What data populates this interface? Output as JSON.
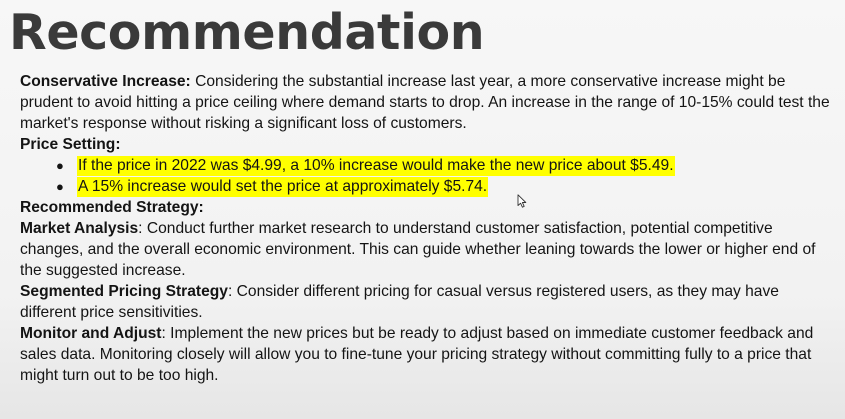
{
  "title": "Recommendation",
  "sections": {
    "conservative": {
      "label": "Conservative Increase:",
      "text": " Considering the substantial increase last year, a more conservative increase might be prudent to avoid hitting a price ceiling where demand starts to drop. An increase in the range of 10-15% could test the market's response without risking a significant loss of customers."
    },
    "price_setting": {
      "label": "Price Setting:",
      "bullets": [
        "If the price in 2022 was $4.99, a 10% increase would make the new price about $5.49.",
        "A 15% increase would set the price at approximately $5.74."
      ]
    },
    "recommended_strategy": {
      "label": "Recommended Strategy:"
    },
    "market_analysis": {
      "label": "Market Analysis",
      "text": ": Conduct further market research to understand customer satisfaction, potential competitive changes, and the overall economic environment. This can guide whether leaning towards the lower or higher end of the suggested increase."
    },
    "segmented_pricing": {
      "label": "Segmented Pricing Strategy",
      "text": ": Consider different pricing for casual versus registered users, as they may have different price sensitivities."
    },
    "monitor_adjust": {
      "label": "Monitor and Adjust",
      "text": ": Implement the new prices but be ready to adjust based on immediate customer feedback and sales data. Monitoring closely will allow you to fine-tune your pricing strategy without committing fully to a price that might turn out to be too high."
    }
  },
  "colors": {
    "highlight": "#ffff00",
    "title": "#3a3a3a",
    "text": "#141414"
  },
  "icons": {
    "bullet": "bullet-icon",
    "cursor": "mouse-cursor-icon"
  }
}
